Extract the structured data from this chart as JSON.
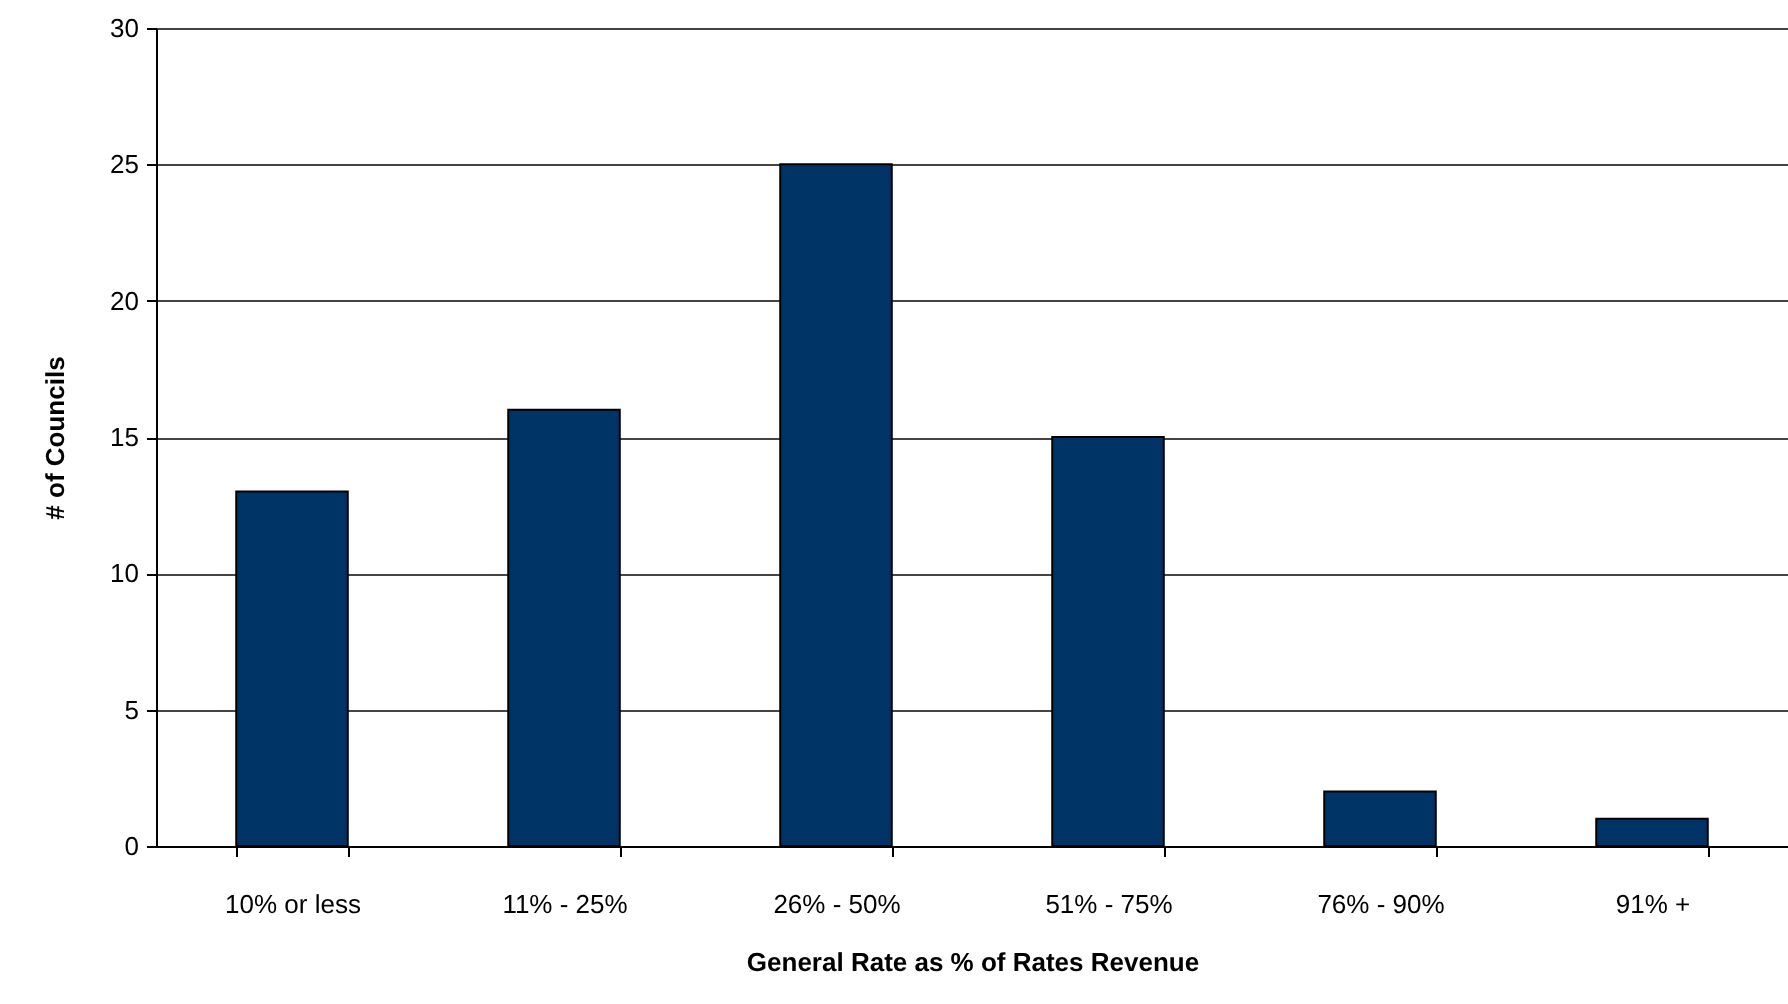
{
  "chart_data": {
    "type": "bar",
    "categories": [
      "10% or less",
      "11% - 25%",
      "26% - 50%",
      "51% - 75%",
      "76% - 90%",
      "91% +"
    ],
    "values": [
      13,
      16,
      25,
      15,
      2,
      1
    ],
    "color": "#003366",
    "xlabel": "General Rate as % of Rates Revenue",
    "ylabel": "# of Councils",
    "ylim": [
      0,
      30
    ],
    "yticks": [
      0,
      5,
      10,
      15,
      20,
      25,
      30
    ],
    "grid": "y"
  }
}
